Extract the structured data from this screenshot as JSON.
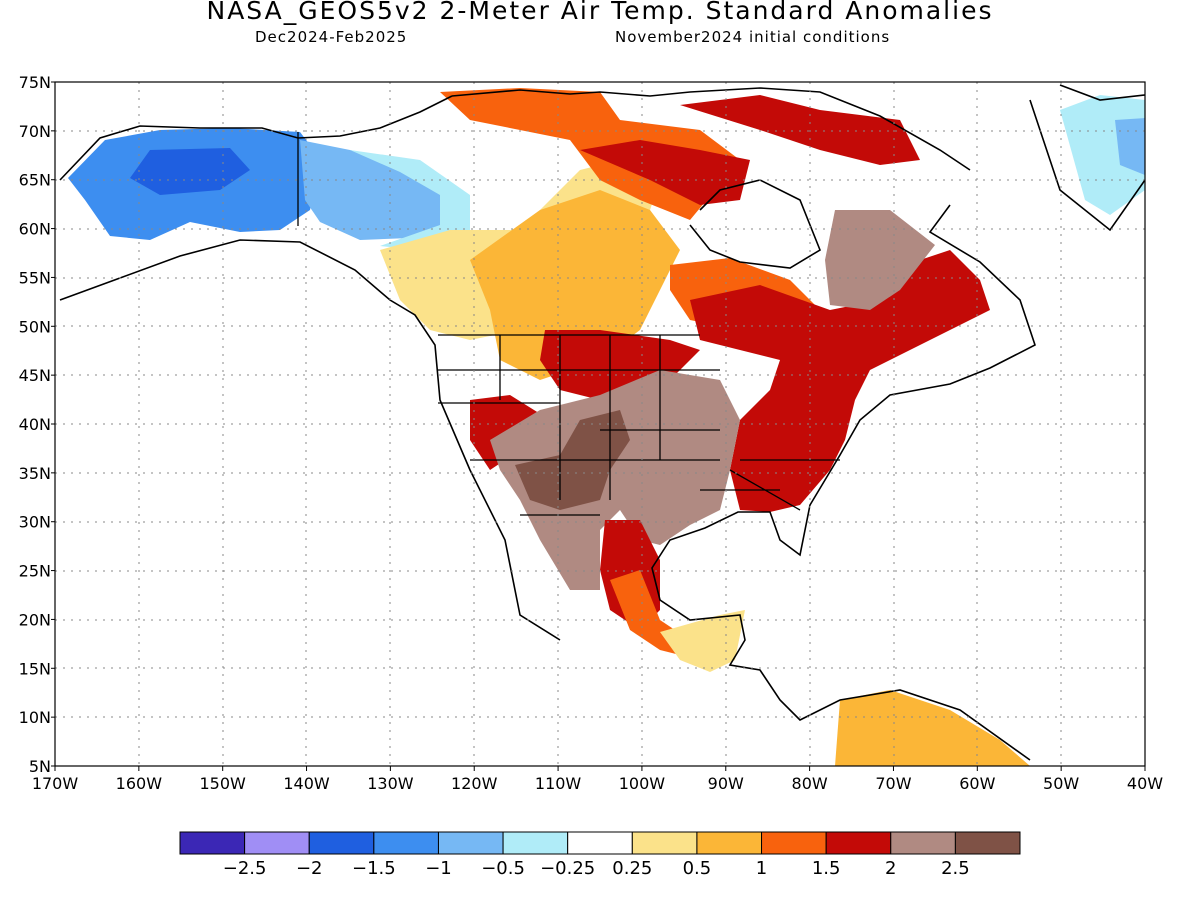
{
  "header": {
    "title": "NASA_GEOS5v2 2-Meter Air Temp. Standard Anomalies",
    "period": "Dec2024-Feb2025",
    "init": "November2024 initial conditions"
  },
  "map": {
    "region": "North America",
    "lon_range": [
      -170,
      -40
    ],
    "lat_range": [
      5,
      75
    ],
    "lat_ticks": [
      "75N",
      "70N",
      "65N",
      "60N",
      "55N",
      "50N",
      "45N",
      "40N",
      "35N",
      "30N",
      "25N",
      "20N",
      "15N",
      "10N",
      "5N"
    ],
    "lon_ticks": [
      "170W",
      "160W",
      "150W",
      "140W",
      "130W",
      "120W",
      "110W",
      "100W",
      "90W",
      "80W",
      "70W",
      "60W",
      "50W",
      "40W"
    ],
    "gridlines": "dotted"
  },
  "colorbar": {
    "colors": [
      "#3b27b5",
      "#a08ef5",
      "#1f5fe0",
      "#3d8ef0",
      "#76b8f4",
      "#b0ecf8",
      "#ffffff",
      "#fbe28a",
      "#fbb637",
      "#f8620d",
      "#c30a07",
      "#b08a82",
      "#7f5246"
    ],
    "labels": [
      "-2.5",
      "-2",
      "-1.5",
      "-1",
      "-0.5",
      "-0.25",
      "0.25",
      "0.5",
      "1",
      "1.5",
      "2",
      "2.5"
    ]
  },
  "regions": [
    {
      "name": "Alaska",
      "anomaly": "-1.5 to -1",
      "color": "#3d8ef0"
    },
    {
      "name": "Yukon",
      "anomaly": "-1 to -0.5",
      "color": "#76b8f4"
    },
    {
      "name": "Northern Canada",
      "anomaly": "0.5 to 2",
      "color": "#fbb637"
    },
    {
      "name": "Eastern US",
      "anomaly": "1.5 to 2.5",
      "color": "#c30a07"
    },
    {
      "name": "Southwest US / Mexico",
      "anomaly": "> 2",
      "color": "#b08a82"
    },
    {
      "name": "Labrador",
      "anomaly": "> 2",
      "color": "#b08a82"
    },
    {
      "name": "Greenland",
      "anomaly": "-1 to -0.25",
      "color": "#b0ecf8"
    }
  ]
}
